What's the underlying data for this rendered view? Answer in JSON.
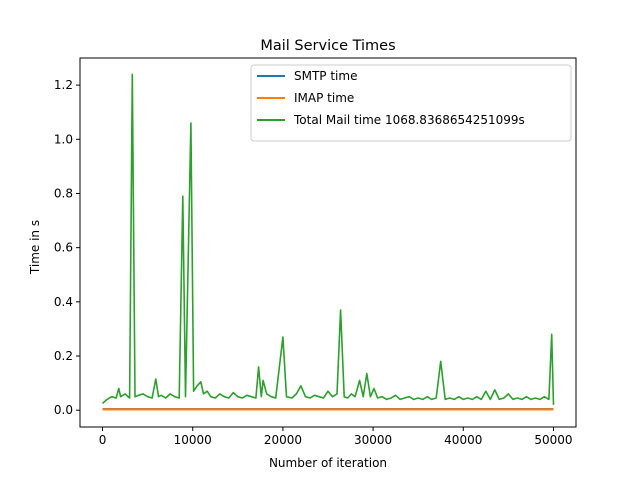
{
  "chart_data": {
    "type": "line",
    "title": "Mail Service Times",
    "xlabel": "Number of iteration",
    "ylabel": "Time in s",
    "xlim": [
      -2500,
      52500
    ],
    "ylim": [
      -0.062,
      1.3
    ],
    "x_ticks": [
      0,
      10000,
      20000,
      30000,
      40000,
      50000
    ],
    "x_tick_labels": [
      "0",
      "10000",
      "20000",
      "30000",
      "40000",
      "50000"
    ],
    "y_ticks": [
      0.0,
      0.2,
      0.4,
      0.6,
      0.8,
      1.0,
      1.2
    ],
    "y_tick_labels": [
      "0.0",
      "0.2",
      "0.4",
      "0.6",
      "0.8",
      "1.0",
      "1.2"
    ],
    "legend_position": "top-right",
    "grid": false,
    "series": [
      {
        "name": "SMTP time",
        "color": "#1f77b4",
        "x": [
          0,
          10000,
          20000,
          30000,
          40000,
          50000
        ],
        "y": [
          0.004,
          0.004,
          0.004,
          0.004,
          0.004,
          0.004
        ]
      },
      {
        "name": "IMAP time",
        "color": "#ff7f0e",
        "x": [
          0,
          10000,
          20000,
          30000,
          40000,
          50000
        ],
        "y": [
          0.003,
          0.003,
          0.003,
          0.003,
          0.003,
          0.003
        ]
      },
      {
        "name": "Total Mail time 1068.8368654251099s",
        "color": "#2ca02c",
        "x": [
          0,
          500,
          1000,
          1500,
          1800,
          2000,
          2500,
          3000,
          3300,
          3600,
          4000,
          4500,
          5000,
          5500,
          5900,
          6200,
          6500,
          7000,
          7500,
          8000,
          8500,
          8900,
          9200,
          9800,
          10100,
          10500,
          10900,
          11200,
          11600,
          12000,
          12500,
          13000,
          13500,
          14000,
          14500,
          15000,
          15500,
          16000,
          16500,
          17000,
          17300,
          17600,
          17800,
          18200,
          18700,
          19200,
          20000,
          20400,
          21000,
          21500,
          22000,
          22500,
          23000,
          23500,
          24000,
          24500,
          25000,
          25500,
          26000,
          26400,
          26800,
          27200,
          27600,
          28000,
          28500,
          28900,
          29300,
          29700,
          30100,
          30500,
          31000,
          31500,
          32000,
          32500,
          33000,
          33500,
          34000,
          34500,
          35000,
          35500,
          36000,
          36500,
          37000,
          37500,
          38000,
          38500,
          39000,
          39500,
          40000,
          40500,
          41000,
          41500,
          42000,
          42500,
          43000,
          43500,
          44000,
          44500,
          45000,
          45500,
          46000,
          46500,
          47000,
          47500,
          48000,
          48500,
          49000,
          49500,
          49800,
          50000
        ],
        "y": [
          0.025,
          0.04,
          0.05,
          0.045,
          0.08,
          0.05,
          0.06,
          0.045,
          1.24,
          0.05,
          0.055,
          0.06,
          0.05,
          0.045,
          0.115,
          0.05,
          0.055,
          0.045,
          0.06,
          0.05,
          0.045,
          0.79,
          0.05,
          1.06,
          0.07,
          0.09,
          0.105,
          0.06,
          0.07,
          0.05,
          0.045,
          0.06,
          0.05,
          0.045,
          0.065,
          0.05,
          0.045,
          0.055,
          0.05,
          0.045,
          0.16,
          0.05,
          0.11,
          0.06,
          0.05,
          0.045,
          0.27,
          0.05,
          0.045,
          0.06,
          0.09,
          0.05,
          0.045,
          0.055,
          0.05,
          0.045,
          0.07,
          0.05,
          0.06,
          0.37,
          0.05,
          0.045,
          0.06,
          0.05,
          0.11,
          0.05,
          0.135,
          0.05,
          0.08,
          0.045,
          0.05,
          0.04,
          0.045,
          0.055,
          0.04,
          0.045,
          0.05,
          0.04,
          0.045,
          0.04,
          0.05,
          0.04,
          0.045,
          0.18,
          0.04,
          0.045,
          0.04,
          0.05,
          0.04,
          0.045,
          0.04,
          0.05,
          0.04,
          0.07,
          0.04,
          0.075,
          0.04,
          0.045,
          0.06,
          0.04,
          0.045,
          0.04,
          0.05,
          0.04,
          0.045,
          0.04,
          0.05,
          0.04,
          0.28,
          0.02
        ]
      }
    ]
  }
}
